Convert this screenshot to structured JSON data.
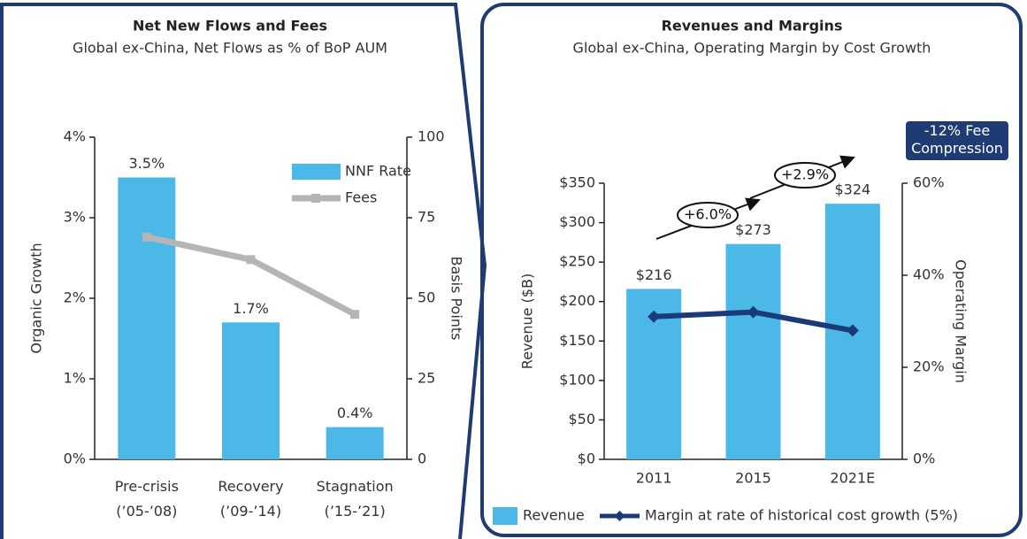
{
  "chart_data": [
    {
      "type": "bar",
      "title": "Net New Flows and Fees",
      "subtitle": "Global ex-China, Net Flows as % of BoP AUM",
      "categories": [
        "Pre-crisis\n(’05-’08)",
        "Recovery\n(’09-’14)",
        "Stagnation\n(’15-’21)"
      ],
      "series": [
        {
          "name": "NNF Rate",
          "color": "#4cb8e8",
          "values": [
            3.5,
            1.7,
            0.4
          ],
          "value_labels": [
            "3.5%",
            "1.7%",
            "0.4%"
          ]
        },
        {
          "name": "Fees",
          "color": "#b5b5b5",
          "type": "line",
          "marker": "square",
          "axis": "y2",
          "values": [
            69,
            62,
            45
          ]
        }
      ],
      "ylabel": "Organic Growth",
      "y2label": "Basis Points",
      "ylim": [
        0,
        4
      ],
      "yticks": [
        {
          "value": 0,
          "label": "0%"
        },
        {
          "value": 1,
          "label": "1%"
        },
        {
          "value": 2,
          "label": "2%"
        },
        {
          "value": 3,
          "label": "3%"
        },
        {
          "value": 4,
          "label": "4%"
        }
      ],
      "y2lim": [
        0,
        100
      ],
      "y2ticks": [
        0,
        25,
        50,
        75,
        100
      ],
      "legend": "upper right"
    },
    {
      "type": "bar",
      "title": "Revenues and Margins",
      "subtitle": "Global ex-China, Operating Margin by Cost Growth",
      "categories": [
        "2011",
        "2015",
        "2021E"
      ],
      "series": [
        {
          "name": "Revenue",
          "color": "#4cb8e8",
          "values": [
            216,
            273,
            324
          ],
          "value_labels": [
            "$216",
            "$273",
            "$324"
          ]
        },
        {
          "name": "Margin at rate of historical cost growth (5%)",
          "color": "#1a3a7a",
          "type": "line",
          "marker": "diamond",
          "axis": "y2",
          "values": [
            31,
            32,
            28
          ]
        }
      ],
      "ylabel": "Revenue ($B)",
      "y2label": "Operating Margin",
      "ylim": [
        0,
        350
      ],
      "yticks": [
        {
          "value": 0,
          "label": "$0"
        },
        {
          "value": 50,
          "label": "$50"
        },
        {
          "value": 100,
          "label": "$100"
        },
        {
          "value": 150,
          "label": "$150"
        },
        {
          "value": 200,
          "label": "$200"
        },
        {
          "value": 250,
          "label": "$250"
        },
        {
          "value": 300,
          "label": "$300"
        },
        {
          "value": 350,
          "label": "$350"
        }
      ],
      "y2lim": [
        0,
        60
      ],
      "y2ticks": [
        {
          "value": 0,
          "label": "0%"
        },
        {
          "value": 20,
          "label": "20%"
        },
        {
          "value": 40,
          "label": "40%"
        },
        {
          "value": 60,
          "label": "60%"
        }
      ],
      "annotations": [
        "+6.0%",
        "+2.9%",
        "-12% Fee\nCompression"
      ],
      "legend": "bottom"
    }
  ]
}
